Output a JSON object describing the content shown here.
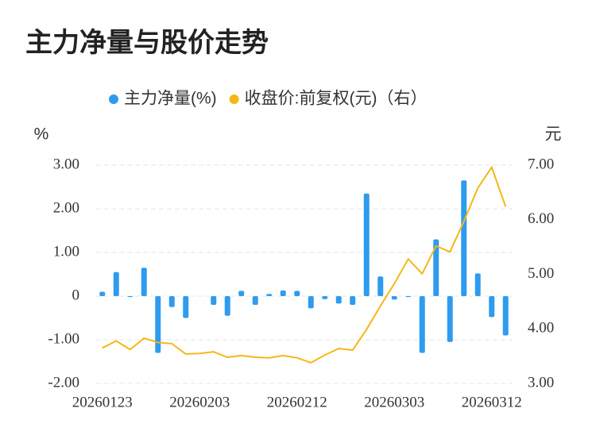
{
  "chart_data": {
    "type": "bar_line",
    "title": "主力净量与股价走势",
    "y_unit": "%",
    "y2_unit": "元",
    "categories": [
      "20260123",
      null,
      null,
      null,
      null,
      null,
      null,
      "20260203",
      null,
      null,
      null,
      null,
      null,
      null,
      "20260212",
      null,
      null,
      null,
      null,
      null,
      null,
      "20260303",
      null,
      null,
      null,
      null,
      null,
      null,
      "20260312",
      null
    ],
    "series": [
      {
        "name": "主力净量(%)",
        "type": "bar",
        "color": "#2e9bef",
        "values": [
          0.1,
          0.55,
          -0.02,
          0.65,
          -1.3,
          -0.25,
          -0.5,
          0,
          -0.2,
          -0.45,
          0.12,
          -0.2,
          0.05,
          0.13,
          0.12,
          -0.28,
          -0.07,
          -0.17,
          -0.2,
          2.35,
          0.45,
          -0.08,
          -0.02,
          -1.3,
          1.3,
          -1.05,
          2.65,
          0.52,
          -0.48,
          -0.9
        ]
      },
      {
        "name": "收盘价:前复权(元)（右）",
        "type": "line",
        "axis": "y2",
        "color": "#f5b716",
        "values": [
          3.65,
          3.78,
          3.62,
          3.83,
          3.75,
          3.73,
          3.54,
          3.55,
          3.58,
          3.48,
          3.51,
          3.48,
          3.47,
          3.51,
          3.47,
          3.38,
          3.52,
          3.64,
          3.61,
          3.99,
          4.42,
          4.83,
          5.28,
          5.01,
          5.52,
          5.41,
          5.97,
          6.58,
          6.96,
          6.24
        ]
      }
    ],
    "ylim": [
      -2,
      3
    ],
    "yticks": [
      {
        "value": -2,
        "label": "-2.00"
      },
      {
        "value": -1,
        "label": "-1.00"
      },
      0,
      {
        "value": 1,
        "label": "1.00"
      },
      {
        "value": 2,
        "label": "2.00"
      },
      {
        "value": 3,
        "label": "3.00"
      }
    ],
    "y2lim": [
      3,
      7
    ],
    "y2ticks": [
      {
        "value": 3,
        "label": "3.00"
      },
      {
        "value": 4,
        "label": "4.00"
      },
      {
        "value": 5,
        "label": "5.00"
      },
      {
        "value": 6,
        "label": "6.00"
      },
      {
        "value": 7,
        "label": "7.00"
      }
    ],
    "grid": true,
    "legend": "top"
  }
}
